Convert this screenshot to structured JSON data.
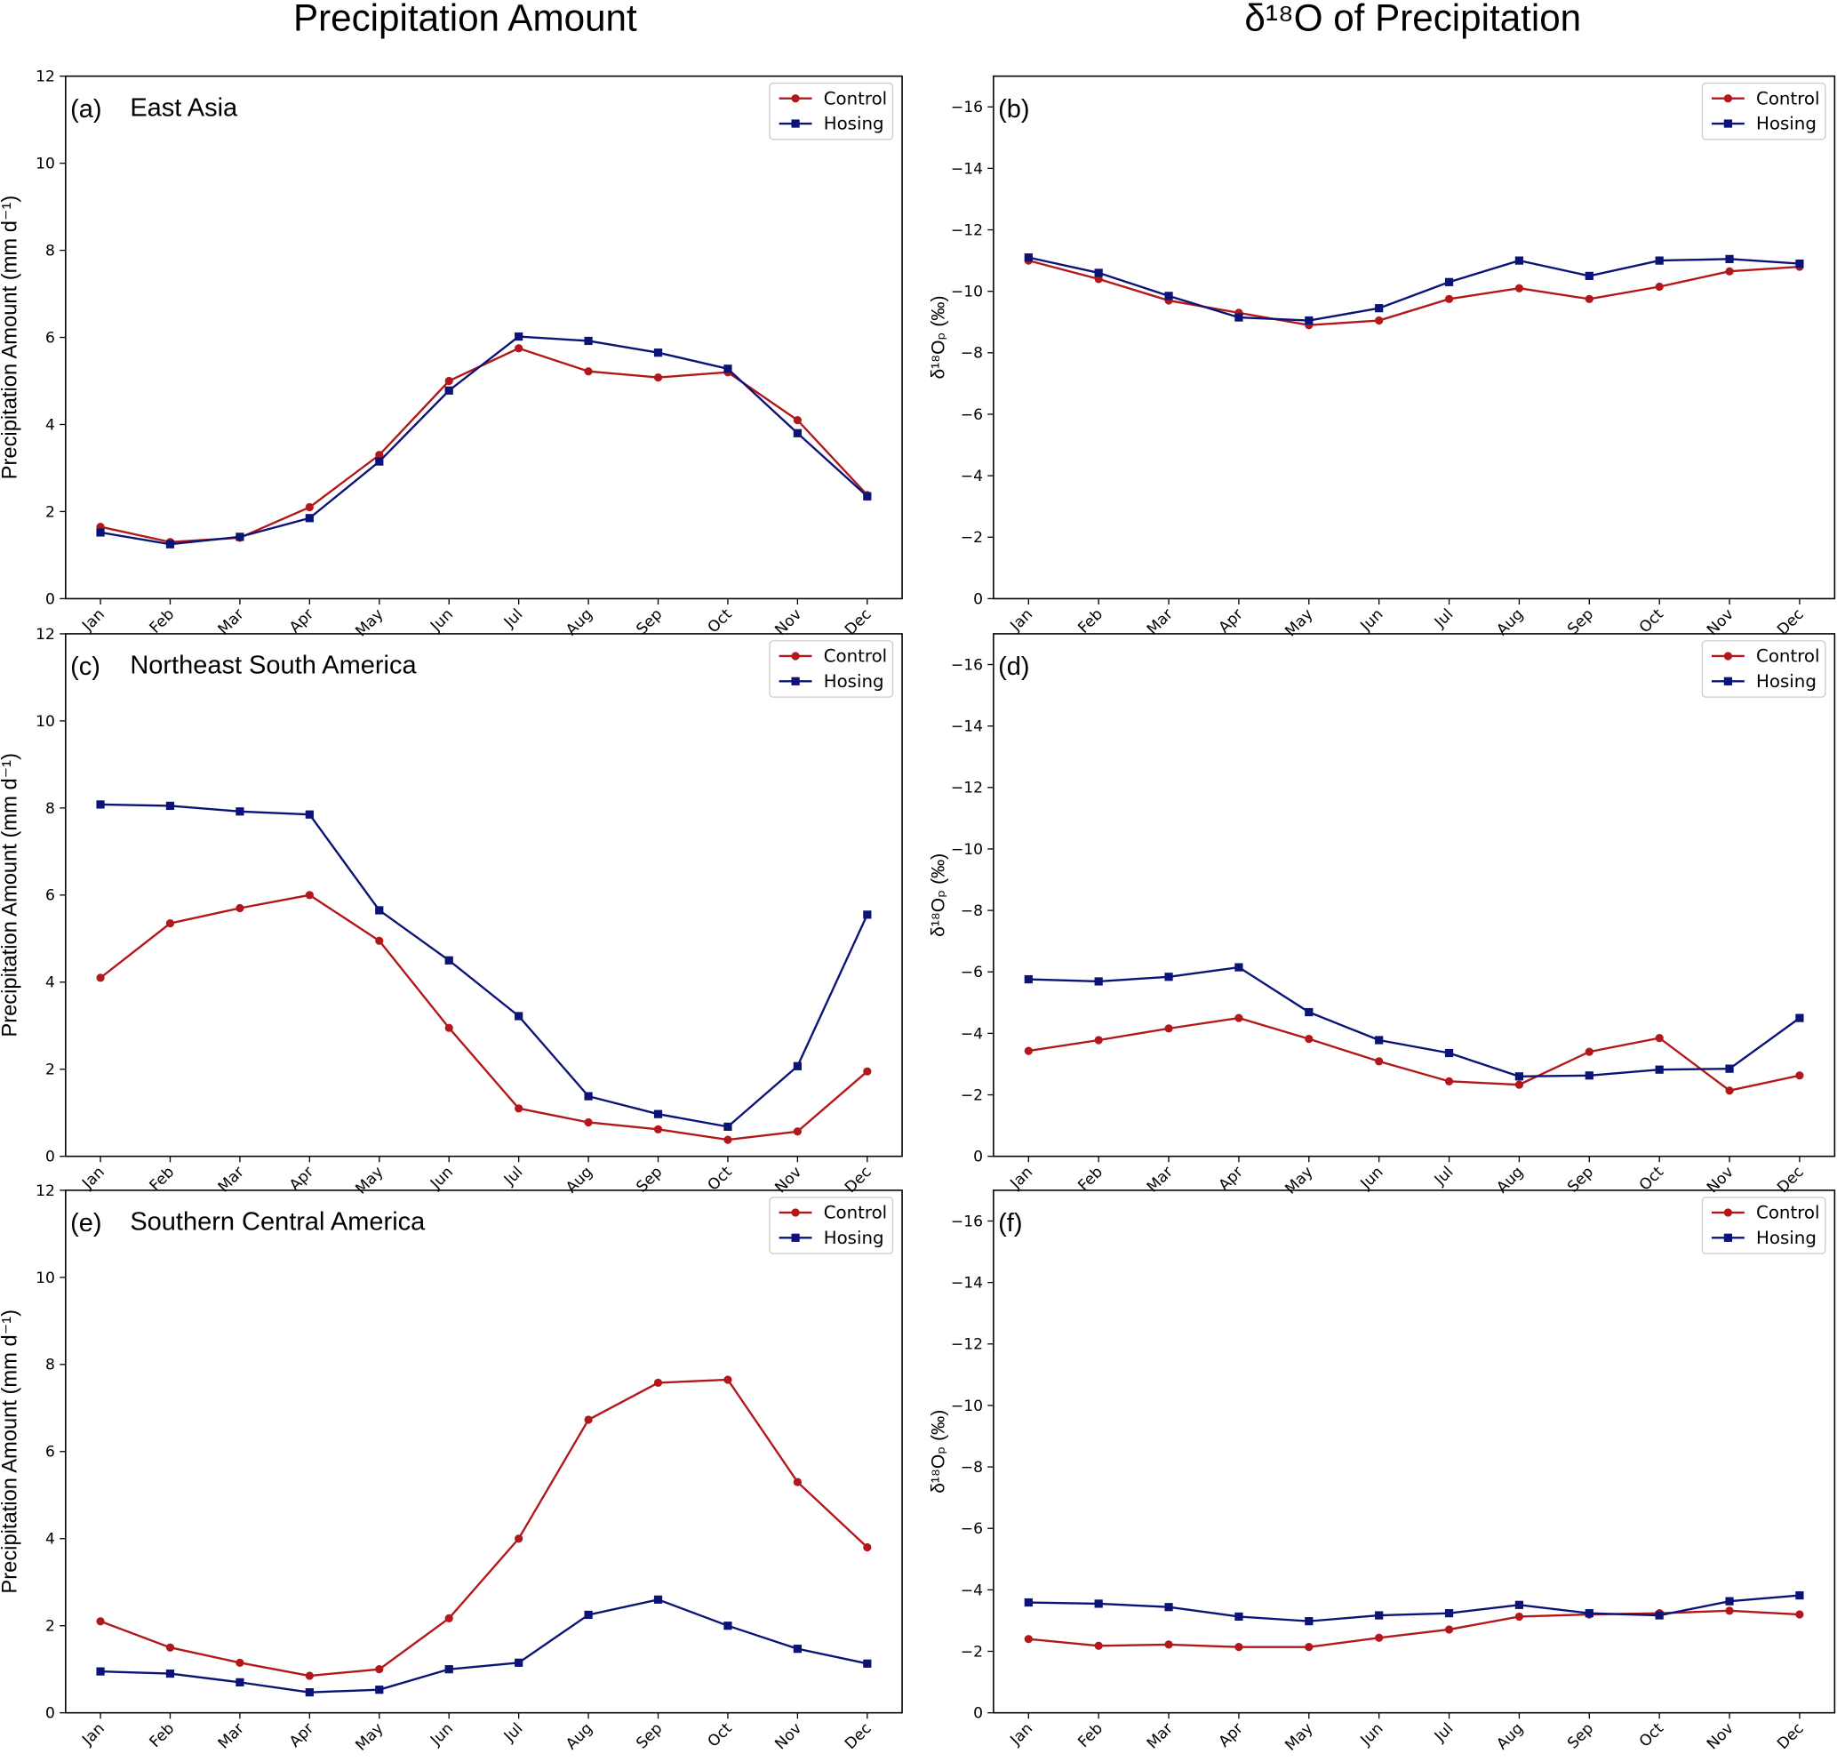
{
  "headers": [
    "Precipitation Amount",
    "δ¹⁸O of Precipitation"
  ],
  "chart_data": [
    {
      "type": "line",
      "panel_label": "(a)",
      "title": "East Asia",
      "ylabel": "Precipitation Amount (mm d⁻¹)",
      "categories": [
        "Jan",
        "Feb",
        "Mar",
        "Apr",
        "May",
        "Jun",
        "Jul",
        "Aug",
        "Sep",
        "Oct",
        "Nov",
        "Dec"
      ],
      "ylim": [
        0,
        12
      ],
      "yticks": [
        0,
        2,
        4,
        6,
        8,
        10,
        12
      ],
      "legend": "upper right",
      "series": [
        {
          "name": "Control",
          "color": "#b2181b",
          "marker": "circle",
          "values": [
            1.65,
            1.3,
            1.4,
            2.1,
            3.3,
            5.0,
            5.75,
            5.22,
            5.08,
            5.2,
            4.1,
            2.38
          ]
        },
        {
          "name": "Hosing",
          "color": "#0b1476",
          "marker": "square",
          "values": [
            1.52,
            1.25,
            1.42,
            1.85,
            3.15,
            4.78,
            6.02,
            5.92,
            5.65,
            5.28,
            3.8,
            2.35
          ]
        }
      ]
    },
    {
      "type": "line",
      "panel_label": "(b)",
      "ylabel": "δ¹⁸Oₚ (‰)",
      "categories": [
        "Jan",
        "Feb",
        "Mar",
        "Apr",
        "May",
        "Jun",
        "Jul",
        "Aug",
        "Sep",
        "Oct",
        "Nov",
        "Dec"
      ],
      "ylim": [
        0,
        -17
      ],
      "yticks": [
        0,
        {
          "value": -2,
          "label": "−2"
        },
        {
          "value": -4,
          "label": "−4"
        },
        {
          "value": -6,
          "label": "−6"
        },
        {
          "value": -8,
          "label": "−8"
        },
        {
          "value": -10,
          "label": "−10"
        },
        {
          "value": -12,
          "label": "−12"
        },
        {
          "value": -14,
          "label": "−14"
        },
        {
          "value": -16,
          "label": "−16"
        }
      ],
      "legend": "upper right",
      "series": [
        {
          "name": "Control",
          "color": "#b2181b",
          "marker": "circle",
          "values": [
            -11.0,
            -10.4,
            -9.7,
            -9.3,
            -8.9,
            -9.05,
            -9.75,
            -10.1,
            -9.75,
            -10.15,
            -10.65,
            -10.8
          ]
        },
        {
          "name": "Hosing",
          "color": "#0b1476",
          "marker": "square",
          "values": [
            -11.1,
            -10.6,
            -9.85,
            -9.15,
            -9.05,
            -9.45,
            -10.3,
            -11.0,
            -10.5,
            -11.0,
            -11.05,
            -10.9
          ]
        }
      ]
    },
    {
      "type": "line",
      "panel_label": "(c)",
      "title": "Northeast South America",
      "ylabel": "Precipitation Amount (mm d⁻¹)",
      "categories": [
        "Jan",
        "Feb",
        "Mar",
        "Apr",
        "May",
        "Jun",
        "Jul",
        "Aug",
        "Sep",
        "Oct",
        "Nov",
        "Dec"
      ],
      "ylim": [
        0,
        12
      ],
      "yticks": [
        0,
        2,
        4,
        6,
        8,
        10,
        12
      ],
      "legend": "upper right",
      "series": [
        {
          "name": "Control",
          "color": "#b2181b",
          "marker": "circle",
          "values": [
            4.1,
            5.35,
            5.7,
            6.0,
            4.95,
            2.95,
            1.1,
            0.78,
            0.62,
            0.38,
            0.57,
            1.95
          ]
        },
        {
          "name": "Hosing",
          "color": "#0b1476",
          "marker": "square",
          "values": [
            8.08,
            8.05,
            7.92,
            7.85,
            5.65,
            4.5,
            3.22,
            1.38,
            0.97,
            0.68,
            2.07,
            5.55
          ]
        }
      ]
    },
    {
      "type": "line",
      "panel_label": "(d)",
      "ylabel": "δ¹⁸Oₚ (‰)",
      "categories": [
        "Jan",
        "Feb",
        "Mar",
        "Apr",
        "May",
        "Jun",
        "Jul",
        "Aug",
        "Sep",
        "Oct",
        "Nov",
        "Dec"
      ],
      "ylim": [
        0,
        -17
      ],
      "yticks": [
        0,
        {
          "value": -2,
          "label": "−2"
        },
        {
          "value": -4,
          "label": "−4"
        },
        {
          "value": -6,
          "label": "−6"
        },
        {
          "value": -8,
          "label": "−8"
        },
        {
          "value": -10,
          "label": "−10"
        },
        {
          "value": -12,
          "label": "−12"
        },
        {
          "value": -14,
          "label": "−14"
        },
        {
          "value": -16,
          "label": "−16"
        }
      ],
      "legend": "upper right",
      "series": [
        {
          "name": "Control",
          "color": "#b2181b",
          "marker": "circle",
          "values": [
            -3.43,
            -3.78,
            -4.16,
            -4.5,
            -3.82,
            -3.09,
            -2.44,
            -2.33,
            -3.4,
            -3.85,
            -2.14,
            -2.63
          ]
        },
        {
          "name": "Hosing",
          "color": "#0b1476",
          "marker": "square",
          "values": [
            -5.76,
            -5.69,
            -5.84,
            -6.15,
            -4.69,
            -3.78,
            -3.36,
            -2.6,
            -2.63,
            -2.82,
            -2.85,
            -4.5
          ]
        }
      ]
    },
    {
      "type": "line",
      "panel_label": "(e)",
      "title": "Southern Central America",
      "ylabel": "Precipitation Amount (mm d⁻¹)",
      "categories": [
        "Jan",
        "Feb",
        "Mar",
        "Apr",
        "May",
        "Jun",
        "Jul",
        "Aug",
        "Sep",
        "Oct",
        "Nov",
        "Dec"
      ],
      "ylim": [
        0,
        12
      ],
      "yticks": [
        0,
        2,
        4,
        6,
        8,
        10,
        12
      ],
      "legend": "upper right",
      "series": [
        {
          "name": "Control",
          "color": "#b2181b",
          "marker": "circle",
          "values": [
            2.1,
            1.5,
            1.15,
            0.85,
            1.0,
            2.17,
            4.0,
            6.73,
            7.58,
            7.65,
            5.3,
            3.8
          ]
        },
        {
          "name": "Hosing",
          "color": "#0b1476",
          "marker": "square",
          "values": [
            0.95,
            0.9,
            0.7,
            0.47,
            0.53,
            1.0,
            1.15,
            2.25,
            2.6,
            2.0,
            1.47,
            1.13
          ]
        }
      ]
    },
    {
      "type": "line",
      "panel_label": "(f)",
      "ylabel": "δ¹⁸Oₚ (‰)",
      "categories": [
        "Jan",
        "Feb",
        "Mar",
        "Apr",
        "May",
        "Jun",
        "Jul",
        "Aug",
        "Sep",
        "Oct",
        "Nov",
        "Dec"
      ],
      "ylim": [
        0,
        -17
      ],
      "yticks": [
        0,
        {
          "value": -2,
          "label": "−2"
        },
        {
          "value": -4,
          "label": "−4"
        },
        {
          "value": -6,
          "label": "−6"
        },
        {
          "value": -8,
          "label": "−8"
        },
        {
          "value": -10,
          "label": "−10"
        },
        {
          "value": -12,
          "label": "−12"
        },
        {
          "value": -14,
          "label": "−14"
        },
        {
          "value": -16,
          "label": "−16"
        }
      ],
      "legend": "upper right",
      "series": [
        {
          "name": "Control",
          "color": "#b2181b",
          "marker": "circle",
          "values": [
            -2.4,
            -2.18,
            -2.22,
            -2.14,
            -2.14,
            -2.44,
            -2.71,
            -3.13,
            -3.2,
            -3.24,
            -3.32,
            -3.2
          ]
        },
        {
          "name": "Hosing",
          "color": "#0b1476",
          "marker": "square",
          "values": [
            -3.59,
            -3.55,
            -3.44,
            -3.13,
            -2.98,
            -3.17,
            -3.24,
            -3.51,
            -3.24,
            -3.17,
            -3.63,
            -3.82
          ]
        }
      ]
    }
  ]
}
